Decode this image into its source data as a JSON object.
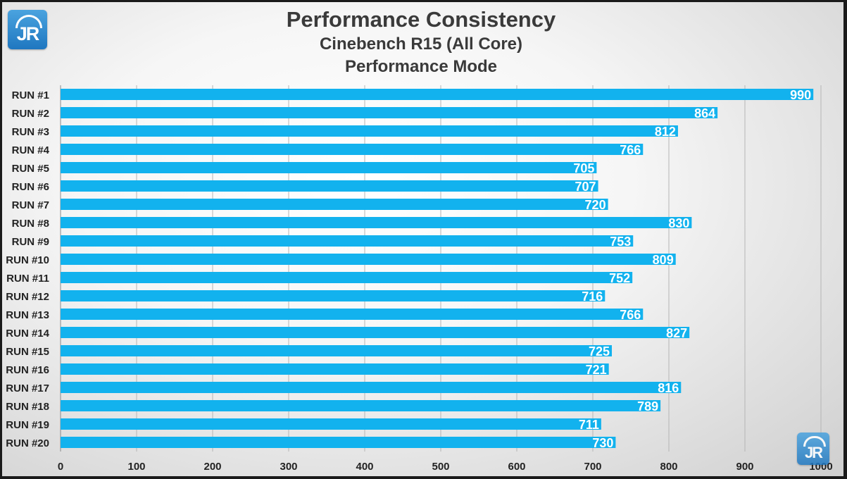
{
  "chart_data": {
    "type": "bar",
    "orientation": "horizontal",
    "title": "Performance Consistency",
    "subtitle": "Cinebench R15 (All Core)",
    "subtitle2": "Performance Mode",
    "categories": [
      "RUN #1",
      "RUN #2",
      "RUN #3",
      "RUN #4",
      "RUN #5",
      "RUN #6",
      "RUN #7",
      "RUN #8",
      "RUN #9",
      "RUN #10",
      "RUN #11",
      "RUN #12",
      "RUN #13",
      "RUN #14",
      "RUN #15",
      "RUN #16",
      "RUN #17",
      "RUN #18",
      "RUN #19",
      "RUN #20"
    ],
    "values": [
      990,
      864,
      812,
      766,
      705,
      707,
      720,
      830,
      753,
      809,
      752,
      716,
      766,
      827,
      725,
      721,
      816,
      789,
      711,
      730
    ],
    "xlim": [
      0,
      1000
    ],
    "xticks": [
      0,
      100,
      200,
      300,
      400,
      500,
      600,
      700,
      800,
      900,
      1000
    ],
    "grid": "vertical",
    "bar_color": "#12b2ee",
    "label_color": "#ffffff"
  },
  "logos": {
    "top_left": {
      "text": "JR",
      "icon": "jr-logo-icon"
    },
    "bottom_right": {
      "text": "JR",
      "icon": "jr-logo-icon"
    }
  }
}
